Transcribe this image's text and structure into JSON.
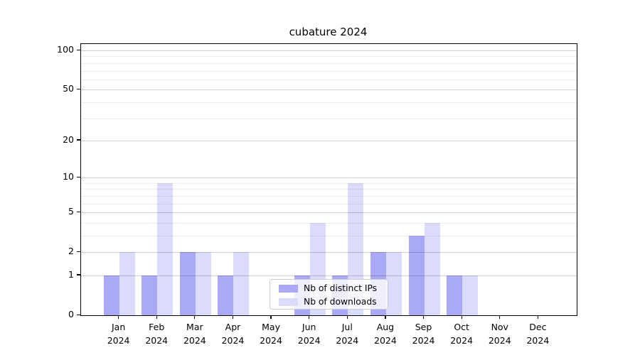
{
  "chart_data": {
    "type": "bar",
    "title": "cubature 2024",
    "categories": [
      {
        "month": "Jan",
        "year": "2024"
      },
      {
        "month": "Feb",
        "year": "2024"
      },
      {
        "month": "Mar",
        "year": "2024"
      },
      {
        "month": "Apr",
        "year": "2024"
      },
      {
        "month": "May",
        "year": "2024"
      },
      {
        "month": "Jun",
        "year": "2024"
      },
      {
        "month": "Jul",
        "year": "2024"
      },
      {
        "month": "Aug",
        "year": "2024"
      },
      {
        "month": "Sep",
        "year": "2024"
      },
      {
        "month": "Oct",
        "year": "2024"
      },
      {
        "month": "Nov",
        "year": "2024"
      },
      {
        "month": "Dec",
        "year": "2024"
      }
    ],
    "series": [
      {
        "name": "Nb of distinct IPs",
        "color": "#a9a9f5",
        "values": [
          1,
          1,
          2,
          1,
          0,
          1,
          1,
          2,
          3,
          1,
          0,
          0
        ]
      },
      {
        "name": "Nb of downloads",
        "color": "#dbdbfb",
        "values": [
          2,
          9,
          2,
          2,
          0,
          4,
          9,
          2,
          4,
          1,
          0,
          0
        ]
      }
    ],
    "xlabel": "",
    "ylabel": "",
    "yscale": "log1p",
    "ylim": [
      0,
      112
    ],
    "yticks": [
      0,
      1,
      2,
      5,
      10,
      20,
      50,
      100
    ],
    "minor_gridlines": [
      3,
      4,
      6,
      7,
      8,
      9,
      30,
      40,
      60,
      70,
      80,
      90
    ],
    "grid": true,
    "legend_position": "inside-lower-center"
  }
}
